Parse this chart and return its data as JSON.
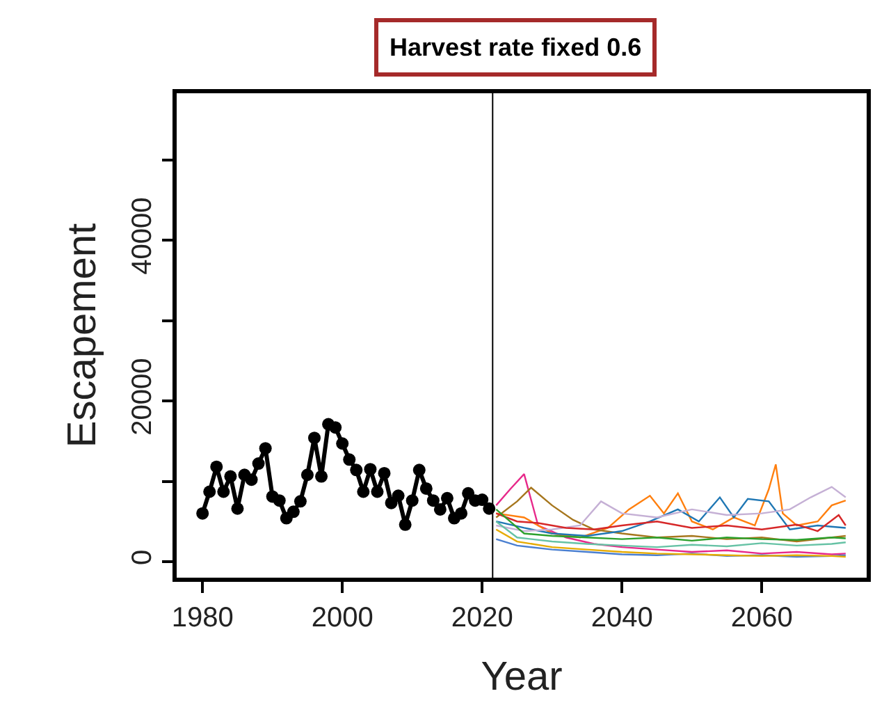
{
  "chart_data": {
    "type": "line",
    "title": "Harvest rate fixed 0.6",
    "xlabel": "Year",
    "ylabel": "Escapement",
    "xlim": [
      1976.3,
      2075
    ],
    "xticks": [
      1980,
      2000,
      2020,
      2040,
      2060
    ],
    "ylim": [
      -2000,
      58300
    ],
    "yticks": [
      0,
      {
        "value": 10000,
        "label": null
      },
      20000,
      {
        "value": 30000,
        "label": null
      },
      40000,
      {
        "value": 50000,
        "label": null
      }
    ],
    "ref_lines": [
      {
        "axis": "x",
        "value": 2021.5,
        "color": "#000000"
      }
    ],
    "series": [
      {
        "color": "#000000",
        "marker": "circle",
        "x": [
          1980,
          1981,
          1982,
          1983,
          1984,
          1985,
          1986,
          1987,
          1988,
          1989,
          1990,
          1991,
          1992,
          1993,
          1994,
          1995,
          1996,
          1997,
          1998,
          1999,
          2000,
          2001,
          2002,
          2003,
          2004,
          2005,
          2006,
          2007,
          2008,
          2009,
          2010,
          2011,
          2012,
          2013,
          2014,
          2015,
          2016,
          2017,
          2018,
          2019,
          2020,
          2021
        ],
        "values": [
          6000,
          8700,
          11800,
          8700,
          10600,
          6600,
          10800,
          10200,
          12200,
          14100,
          8100,
          7600,
          5400,
          6200,
          7500,
          10800,
          15400,
          10600,
          17100,
          16700,
          14700,
          12700,
          11400,
          8700,
          11500,
          8700,
          11000,
          7300,
          8200,
          4600,
          7600,
          11400,
          9100,
          7600,
          6500,
          7900,
          5400,
          6000,
          8500,
          7600,
          7700,
          6600
        ]
      },
      {
        "color": "#e7298a",
        "x": [
          2022,
          2024,
          2026,
          2028,
          2032,
          2036,
          2040,
          2045,
          2050,
          2055,
          2060,
          2065,
          2070,
          2072
        ],
        "values": [
          7000,
          9000,
          10900,
          4500,
          3000,
          2200,
          1800,
          1500,
          1200,
          1400,
          1000,
          1200,
          900,
          1000
        ]
      },
      {
        "color": "#ff7f0e",
        "x": [
          2022,
          2026,
          2030,
          2034,
          2038,
          2041,
          2044,
          2046,
          2048,
          2050,
          2053,
          2056,
          2059,
          2061,
          2062,
          2063,
          2065,
          2068,
          2070,
          2072
        ],
        "values": [
          6000,
          5500,
          3500,
          3000,
          4200,
          6500,
          8200,
          6000,
          8500,
          5000,
          4000,
          5500,
          4500,
          9000,
          12100,
          6000,
          4500,
          5000,
          7000,
          7600
        ]
      },
      {
        "color": "#a6761d",
        "x": [
          2022,
          2025,
          2027,
          2030,
          2033,
          2036,
          2040,
          2045,
          2050,
          2055,
          2060,
          2065,
          2070,
          2072
        ],
        "values": [
          5500,
          7500,
          9200,
          7000,
          5200,
          4000,
          3500,
          3000,
          3200,
          2800,
          3000,
          2500,
          3000,
          3200
        ]
      },
      {
        "color": "#1f77b4",
        "x": [
          2022,
          2026,
          2030,
          2035,
          2040,
          2044,
          2048,
          2051,
          2054,
          2056,
          2058,
          2061,
          2064,
          2068,
          2072
        ],
        "values": [
          5000,
          4200,
          3500,
          3200,
          3800,
          5000,
          6500,
          5000,
          8000,
          5500,
          7800,
          7500,
          4000,
          4500,
          4200
        ]
      },
      {
        "color": "#c5b0d5",
        "x": [
          2022,
          2026,
          2030,
          2034,
          2037,
          2040,
          2045,
          2050,
          2055,
          2060,
          2064,
          2067,
          2070,
          2072
        ],
        "values": [
          4500,
          3800,
          4000,
          4500,
          7500,
          6000,
          5500,
          6500,
          5800,
          6000,
          6500,
          8000,
          9300,
          8000
        ]
      },
      {
        "color": "#d62728",
        "x": [
          2022,
          2025,
          2028,
          2032,
          2036,
          2040,
          2045,
          2050,
          2055,
          2060,
          2065,
          2068,
          2071,
          2072
        ],
        "values": [
          6000,
          5000,
          4800,
          4200,
          4000,
          4500,
          5000,
          4200,
          4500,
          4000,
          4600,
          3800,
          5800,
          4500
        ]
      },
      {
        "color": "#2ca02c",
        "x": [
          2022,
          2026,
          2030,
          2035,
          2040,
          2045,
          2050,
          2055,
          2060,
          2065,
          2070,
          2072
        ],
        "values": [
          6500,
          3500,
          3200,
          3000,
          2800,
          3000,
          2600,
          3000,
          2800,
          2700,
          3000,
          2900
        ]
      },
      {
        "color": "#4a7fd0",
        "x": [
          2022,
          2025,
          2030,
          2035,
          2040,
          2045,
          2050,
          2055,
          2060,
          2065,
          2070,
          2072
        ],
        "values": [
          2800,
          2000,
          1500,
          1200,
          900,
          800,
          1000,
          700,
          800,
          600,
          700,
          800
        ]
      },
      {
        "color": "#e6ab02",
        "x": [
          2022,
          2025,
          2030,
          2035,
          2040,
          2045,
          2050,
          2055,
          2060,
          2065,
          2070,
          2072
        ],
        "values": [
          4000,
          2500,
          1800,
          1500,
          1200,
          1000,
          900,
          800,
          700,
          800,
          700,
          600
        ]
      },
      {
        "color": "#66c2a5",
        "x": [
          2022,
          2025,
          2030,
          2035,
          2040,
          2045,
          2050,
          2055,
          2060,
          2065,
          2070,
          2072
        ],
        "values": [
          5000,
          3000,
          2500,
          2200,
          2000,
          1800,
          2100,
          1900,
          2300,
          2000,
          2200,
          2400
        ]
      }
    ]
  }
}
